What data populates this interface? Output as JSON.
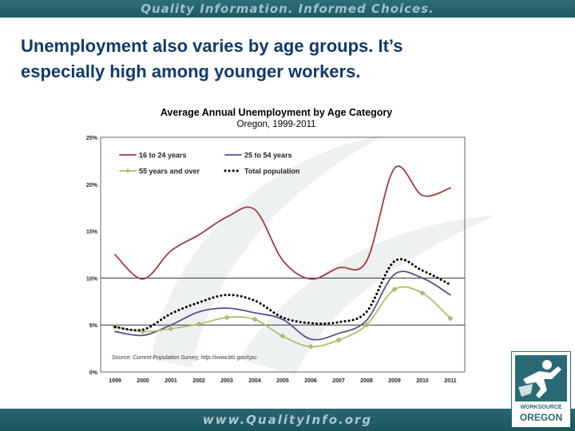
{
  "header": {
    "tagline": "Quality Information. Informed Choices."
  },
  "slide": {
    "title_line1": "Unemployment also varies by age groups. It’s",
    "title_line2": "especially high among younger workers."
  },
  "footer": {
    "url": "www.QualityInfo.org"
  },
  "logo": {
    "line1": "WORKSOURCE",
    "line2": "OREGON"
  },
  "colors": {
    "banner": "#22606a",
    "title_text": "#123a6b",
    "youth": "#a53a3a",
    "prime": "#5a4f8a",
    "older": "#a6c46a",
    "total": "#000000"
  },
  "chart_data": {
    "type": "line",
    "title": "Average Annual Unemployment by Age Category",
    "subtitle": "Oregon, 1999-2011",
    "x": [
      "1999",
      "2000",
      "2001",
      "2002",
      "2003",
      "2004",
      "2005",
      "2006",
      "2007",
      "2008",
      "2009",
      "2010",
      "2011"
    ],
    "ylim": [
      0,
      25
    ],
    "yticks": [
      "0%",
      "5%",
      "10%",
      "15%",
      "20%",
      "25%"
    ],
    "series": [
      {
        "name": "16 to 24 years",
        "color": "#a53a3a",
        "style": "solid",
        "marker": "none",
        "values": [
          12.5,
          9.9,
          12.9,
          14.6,
          16.5,
          17.3,
          11.9,
          9.9,
          11.1,
          11.8,
          21.7,
          18.8,
          19.6
        ]
      },
      {
        "name": "25 to 54 years",
        "color": "#5a4f8a",
        "style": "solid",
        "marker": "none",
        "values": [
          4.3,
          3.9,
          5.0,
          6.4,
          6.8,
          6.3,
          5.6,
          3.5,
          4.1,
          5.5,
          10.4,
          10.0,
          8.2
        ]
      },
      {
        "name": "55 years and over",
        "color": "#a6c46a",
        "style": "solid",
        "marker": "diamond",
        "values": [
          4.8,
          4.3,
          4.6,
          5.1,
          5.8,
          5.6,
          3.8,
          2.7,
          3.4,
          5.0,
          8.8,
          8.4,
          5.7
        ]
      },
      {
        "name": "Total population",
        "color": "#000000",
        "style": "dotted",
        "marker": "none",
        "values": [
          4.8,
          4.5,
          6.2,
          7.4,
          8.2,
          7.6,
          5.8,
          5.2,
          5.3,
          6.4,
          11.8,
          10.8,
          9.3
        ]
      }
    ],
    "highlight_lines_at": [
      5,
      10
    ],
    "source": "Source: Current Population Survey, http://www.bls.gov/cpu",
    "legend_placement": "top-left"
  }
}
